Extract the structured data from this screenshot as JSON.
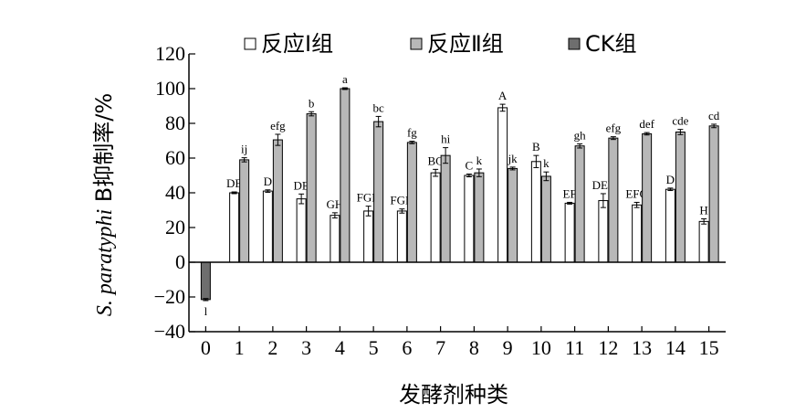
{
  "chart_data": {
    "type": "bar",
    "xlabel": "发酵剂种类",
    "ylabel_italic": "S. paratyphi",
    "ylabel_rest": " B抑制率/%",
    "ylim": [
      -40,
      120
    ],
    "yticks": [
      -40,
      -20,
      0,
      20,
      40,
      60,
      80,
      100,
      120
    ],
    "categories": [
      "0",
      "1",
      "2",
      "3",
      "4",
      "5",
      "6",
      "7",
      "8",
      "9",
      "10",
      "11",
      "12",
      "13",
      "14",
      "15"
    ],
    "legend_position": "top",
    "series": [
      {
        "name": "反应Ⅰ组",
        "color": "#ffffff",
        "values": [
          null,
          40,
          41,
          36.5,
          27,
          29.5,
          29.5,
          51.5,
          50,
          89,
          58,
          34,
          35.5,
          33,
          42,
          23.5
        ],
        "errors": [
          null,
          0.5,
          0.7,
          2.8,
          1.5,
          2.8,
          1.2,
          2,
          0.8,
          2,
          3.5,
          0.5,
          4,
          1.5,
          0.7,
          1.5
        ],
        "labels": [
          null,
          "DE",
          "D",
          "DE",
          "GH",
          "FGH",
          "FGH",
          "BC",
          "C",
          "A",
          "B",
          "EF",
          "DEF",
          "EFG",
          "D",
          "H"
        ]
      },
      {
        "name": "反应Ⅱ组",
        "color": "#b8b8b8",
        "values": [
          null,
          59,
          70.5,
          85.5,
          100,
          81,
          69,
          61.5,
          51.5,
          54,
          49.5,
          67,
          71.5,
          74,
          75,
          78.5
        ],
        "errors": [
          null,
          1.2,
          3.2,
          1.2,
          0.5,
          3,
          0.7,
          4.5,
          2.2,
          0.8,
          2.5,
          1.2,
          0.8,
          0.7,
          1.5,
          1
        ],
        "labels": [
          null,
          "ij",
          "efg",
          "b",
          "a",
          "bc",
          "fg",
          "hi",
          "k",
          "jk",
          "k",
          "gh",
          "efg",
          "def",
          "cde",
          "cd"
        ]
      },
      {
        "name": "CK组",
        "color": "#6e6e6e",
        "values": [
          -21.5,
          null,
          null,
          null,
          null,
          null,
          null,
          null,
          null,
          null,
          null,
          null,
          null,
          null,
          null,
          null
        ],
        "errors": [
          0.6,
          null,
          null,
          null,
          null,
          null,
          null,
          null,
          null,
          null,
          null,
          null,
          null,
          null,
          null,
          null
        ],
        "labels": [
          "l",
          null,
          null,
          null,
          null,
          null,
          null,
          null,
          null,
          null,
          null,
          null,
          null,
          null,
          null,
          null
        ]
      }
    ]
  }
}
